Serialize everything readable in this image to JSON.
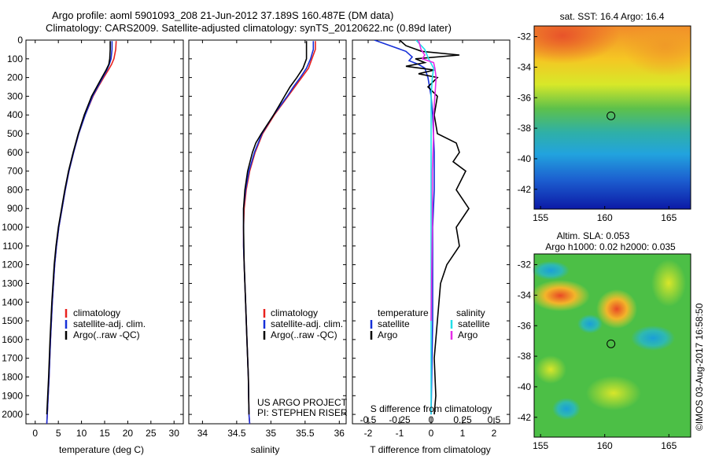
{
  "title_line1": "Argo profile: aoml 5901093_208 21-Jun-2012 37.189S 160.487E (DM data)",
  "title_line2": "Climatology: CARS2009. Satellite-adjusted climatology: synTS_20120622.nc (0.89d later)",
  "footer_text": "©IMOS 03-Aug-2017 16:58:50",
  "project_text": [
    "US ARGO PROJECT",
    "PI: STEPHEN RISER"
  ],
  "colors": {
    "climatology": "#e8221e",
    "satellite": "#1630d8",
    "argo": "#000000",
    "salinity_sat": "#22dfe8",
    "salinity_argo": "#e62ce8"
  },
  "chart_data": [
    {
      "type": "line",
      "xlabel": "temperature (deg C)",
      "xlim": [
        -2,
        32
      ],
      "xticks": [
        0,
        5,
        10,
        15,
        20,
        25,
        30
      ],
      "ylim": [
        0,
        2050
      ],
      "yticks": [
        0,
        100,
        200,
        300,
        400,
        500,
        600,
        700,
        800,
        900,
        1000,
        1100,
        1200,
        1300,
        1400,
        1500,
        1600,
        1700,
        1800,
        1900,
        2000
      ],
      "legend": [
        "climatology",
        "satellite-adj. clim.",
        "Argo(..raw -QC)"
      ],
      "series": [
        {
          "name": "climatology",
          "y": [
            5,
            50,
            100,
            130,
            160,
            200,
            250,
            300,
            400,
            500,
            600,
            700,
            800,
            900,
            1000,
            1100,
            1200,
            1400,
            1600,
            1800,
            2000,
            2050
          ],
          "x": [
            17.5,
            17.4,
            17.0,
            16.5,
            15.8,
            14.8,
            13.6,
            12.5,
            10.8,
            9.4,
            8.3,
            7.3,
            6.5,
            5.8,
            5.1,
            4.6,
            4.2,
            3.7,
            3.3,
            3.0,
            2.6,
            2.5
          ]
        },
        {
          "name": "satellite-adj. clim.",
          "y": [
            5,
            50,
            100,
            130,
            160,
            200,
            250,
            300,
            400,
            500,
            600,
            700,
            800,
            900,
            1000,
            1100,
            1200,
            1400,
            1600,
            1800,
            2000,
            2050
          ],
          "x": [
            16.6,
            16.6,
            16.4,
            16.0,
            15.5,
            14.6,
            13.5,
            12.4,
            10.8,
            9.4,
            8.3,
            7.3,
            6.5,
            5.8,
            5.1,
            4.6,
            4.2,
            3.7,
            3.3,
            3.0,
            2.6,
            2.5
          ]
        },
        {
          "name": "Argo(..raw -QC)",
          "y": [
            5,
            50,
            100,
            130,
            160,
            200,
            250,
            300,
            400,
            500,
            600,
            700,
            800,
            900,
            1000,
            1100,
            1200,
            1400,
            1600,
            1800,
            2000
          ],
          "x": [
            16.2,
            16.2,
            16.1,
            15.9,
            15.3,
            14.4,
            13.3,
            12.2,
            10.6,
            9.3,
            8.2,
            7.2,
            6.4,
            5.7,
            5.0,
            4.5,
            4.1,
            3.6,
            3.2,
            2.9,
            2.5
          ]
        }
      ]
    },
    {
      "type": "line",
      "xlabel": "salinity",
      "xlim": [
        33.8,
        36.1
      ],
      "xticks": [
        34,
        34.5,
        35,
        35.5,
        36
      ],
      "ylim": [
        0,
        2050
      ],
      "legend": [
        "climatology",
        "satellite-adj. clim.",
        "Argo(..raw -QC)"
      ],
      "series": [
        {
          "name": "climatology",
          "y": [
            5,
            50,
            100,
            150,
            200,
            250,
            300,
            350,
            400,
            500,
            600,
            700,
            800,
            900,
            1000,
            1100,
            1200,
            1400,
            1600,
            1800,
            2000,
            2050
          ],
          "x": [
            35.65,
            35.65,
            35.6,
            35.55,
            35.45,
            35.35,
            35.25,
            35.15,
            35.05,
            34.88,
            34.77,
            34.69,
            34.64,
            34.61,
            34.6,
            34.6,
            34.61,
            34.63,
            34.65,
            34.67,
            34.68,
            34.69
          ]
        },
        {
          "name": "satellite-adj. clim.",
          "y": [
            5,
            50,
            100,
            150,
            200,
            250,
            300,
            350,
            400,
            500,
            600,
            700,
            800,
            900,
            1000,
            1100,
            1200,
            1400,
            1600,
            1800,
            2000,
            2050
          ],
          "x": [
            35.62,
            35.62,
            35.58,
            35.52,
            35.43,
            35.33,
            35.24,
            35.14,
            35.04,
            34.87,
            34.76,
            34.68,
            34.63,
            34.6,
            34.6,
            34.6,
            34.61,
            34.63,
            34.65,
            34.67,
            34.68,
            34.69
          ]
        },
        {
          "name": "Argo(..raw -QC)",
          "y": [
            5,
            50,
            100,
            150,
            200,
            250,
            300,
            350,
            400,
            500,
            550,
            600,
            700,
            800,
            900,
            1000,
            1200,
            1400,
            1600,
            1800,
            2000
          ],
          "x": [
            35.52,
            35.52,
            35.52,
            35.47,
            35.38,
            35.28,
            35.2,
            35.12,
            35.04,
            34.86,
            34.78,
            34.73,
            34.66,
            34.62,
            34.6,
            34.6,
            34.61,
            34.63,
            34.65,
            34.67,
            34.68
          ]
        }
      ]
    },
    {
      "type": "line",
      "xlabel": "T difference from climatology",
      "xlabel_top": "S difference from climatology",
      "xlim": [
        -2.5,
        2.5
      ],
      "xticks": [
        -2,
        -1,
        0,
        1,
        2
      ],
      "xlim_top": [
        -0.625,
        0.625
      ],
      "xticks_top": [
        -0.5,
        -0.25,
        0,
        0.25,
        0.5
      ],
      "ylim": [
        0,
        2050
      ],
      "legend": [
        "temperature",
        "satellite",
        "Argo",
        "salinity",
        "satellite",
        "Argo"
      ],
      "series": [
        {
          "name": "temperature satellite",
          "y": [
            0,
            30,
            60,
            90,
            110,
            130,
            150,
            200,
            300,
            400,
            600,
            800,
            1000,
            1500,
            2000
          ],
          "x": [
            -1.8,
            -1.3,
            -0.8,
            -0.6,
            -0.7,
            -0.4,
            -0.2,
            -0.1,
            0.0,
            0.05,
            0.1,
            0.1,
            0.05,
            0.05,
            0.0
          ]
        },
        {
          "name": "temperature Argo",
          "y": [
            0,
            30,
            60,
            80,
            100,
            120,
            140,
            160,
            180,
            200,
            250,
            300,
            400,
            500,
            550,
            600,
            650,
            700,
            800,
            900,
            1000,
            1100,
            1200,
            1300,
            1500,
            1700,
            1900,
            2000
          ],
          "x": [
            -1.0,
            -0.8,
            -0.3,
            0.9,
            -0.5,
            -0.2,
            -0.8,
            0.1,
            -0.4,
            0.2,
            -0.1,
            0.2,
            0.1,
            0.2,
            0.8,
            0.9,
            0.7,
            1.1,
            0.8,
            1.2,
            0.8,
            0.9,
            0.5,
            0.3,
            0.2,
            0.1,
            0.15,
            0.1
          ]
        },
        {
          "name": "salinity satellite",
          "y": [
            0,
            50,
            100,
            150,
            200,
            300,
            500,
            800,
            1000,
            1500,
            2000
          ],
          "x": [
            -0.12,
            -0.05,
            -0.02,
            0.02,
            0.01,
            0.0,
            0.0,
            0.0,
            0.0,
            0.0,
            0.0
          ]
        },
        {
          "name": "salinity Argo",
          "y": [
            0,
            50,
            80,
            100,
            120,
            150,
            200,
            300,
            400,
            500,
            700,
            1000,
            1500
          ],
          "x": [
            -0.1,
            -0.08,
            -0.05,
            -0.07,
            0.02,
            0.03,
            0.04,
            0.03,
            0.02,
            0.02,
            0.01,
            0.01,
            0.0
          ]
        }
      ]
    },
    {
      "type": "heatmap",
      "title": "sat. SST: 16.4  Argo: 16.4",
      "xlim": [
        154.5,
        166.7
      ],
      "xticks": [
        155,
        160,
        165
      ],
      "ylim": [
        -43.3,
        -31.3
      ],
      "yticks": [
        -32,
        -34,
        -36,
        -38,
        -40,
        -42
      ],
      "marker": {
        "lon": 160.487,
        "lat": -37.189
      }
    },
    {
      "type": "heatmap",
      "title": [
        "Altim. SLA: 0.053",
        "Argo h1000: 0.02 h2000: 0.035"
      ],
      "xlim": [
        154.5,
        166.7
      ],
      "xticks": [
        155,
        160,
        165
      ],
      "ylim": [
        -43.3,
        -31.3
      ],
      "yticks": [
        -32,
        -34,
        -36,
        -38,
        -40,
        -42
      ],
      "marker": {
        "lon": 160.487,
        "lat": -37.189
      }
    }
  ]
}
